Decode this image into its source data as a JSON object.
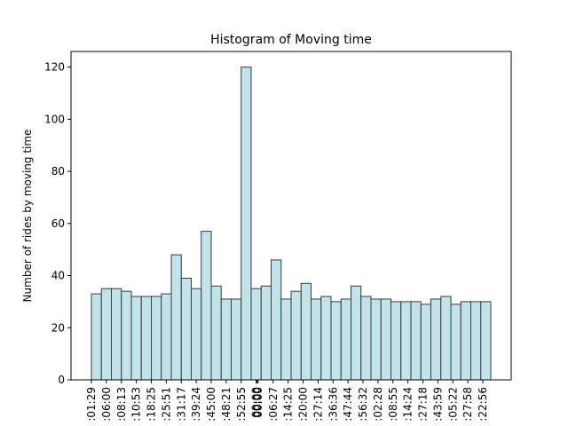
{
  "chart_data": {
    "type": "bar",
    "title": "Histogram of Moving time",
    "xlabel": "",
    "ylabel": "Number of rides by moving time",
    "ylim": [
      0,
      126
    ],
    "yticks": [
      0,
      20,
      40,
      60,
      80,
      100,
      120
    ],
    "grid": false,
    "bar_color": "#c2e3ea",
    "edge_color": "#3a3a3a",
    "values": [
      33,
      35,
      35,
      34,
      32,
      32,
      32,
      33,
      48,
      39,
      35,
      57,
      36,
      31,
      31,
      120,
      35,
      36,
      46,
      31,
      34,
      37,
      31,
      32,
      30,
      31,
      36,
      32,
      31,
      31,
      30,
      30,
      30,
      29,
      31,
      32,
      29,
      30,
      30,
      30
    ],
    "xticks": [
      {
        "bin": 0.0,
        "label": ":01:29"
      },
      {
        "bin": 1.5,
        "label": ":06:00"
      },
      {
        "bin": 3.0,
        "label": ":08:13"
      },
      {
        "bin": 4.5,
        "label": ":10:53"
      },
      {
        "bin": 6.0,
        "label": ":18:25"
      },
      {
        "bin": 7.5,
        "label": ":25:51"
      },
      {
        "bin": 9.0,
        "label": ":31:17"
      },
      {
        "bin": 10.5,
        "label": ":39:24"
      },
      {
        "bin": 12.0,
        "label": ":45:00"
      },
      {
        "bin": 13.5,
        "label": ":48:21"
      },
      {
        "bin": 15.0,
        "label": ":52:55"
      },
      {
        "bin": 16.5,
        "label": "00:00"
      },
      {
        "bin": 16.6,
        "label": "00:00"
      },
      {
        "bin": 16.7,
        "label": "00:00"
      },
      {
        "bin": 18.2,
        "label": ":06:27"
      },
      {
        "bin": 19.7,
        "label": ":14:25"
      },
      {
        "bin": 21.2,
        "label": ":20:00"
      },
      {
        "bin": 22.7,
        "label": ":27:14"
      },
      {
        "bin": 24.2,
        "label": ":36:36"
      },
      {
        "bin": 25.7,
        "label": ":47:44"
      },
      {
        "bin": 27.2,
        "label": ":56:32"
      },
      {
        "bin": 28.7,
        "label": ":02:28"
      },
      {
        "bin": 30.2,
        "label": ":08:55"
      },
      {
        "bin": 31.7,
        "label": ":14:24"
      },
      {
        "bin": 33.2,
        "label": ":27:18"
      },
      {
        "bin": 34.7,
        "label": ":43:59"
      },
      {
        "bin": 36.2,
        "label": ":05:22"
      },
      {
        "bin": 37.7,
        "label": ":27:58"
      },
      {
        "bin": 39.2,
        "label": ":22:56"
      }
    ]
  }
}
